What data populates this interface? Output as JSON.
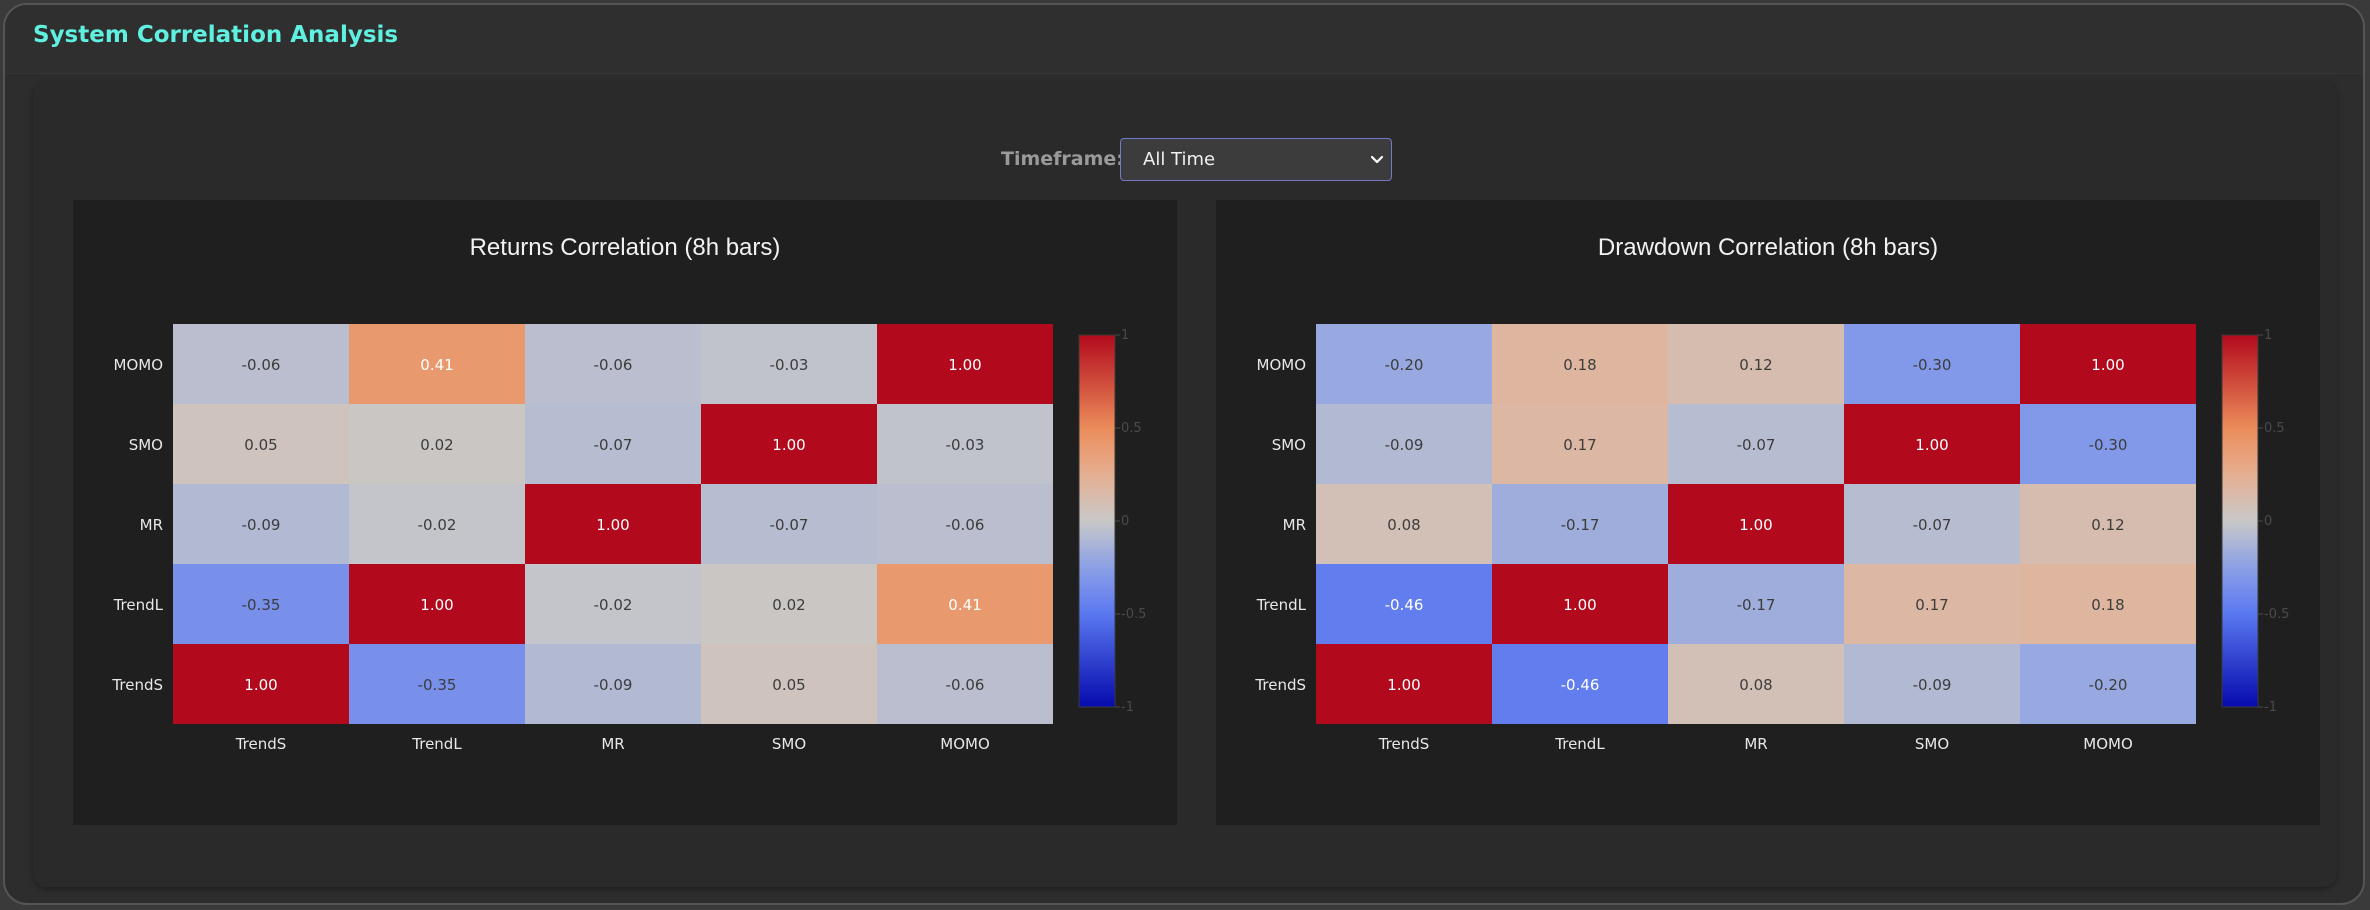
{
  "app": {
    "title": "System Correlation Analysis"
  },
  "controls": {
    "timeframe_label": "Timeframe:",
    "timeframe_value": "All Time"
  },
  "colors": {
    "title_accent": "#5ff0e0",
    "select_border": "#6f79c8"
  },
  "chart_data": [
    {
      "type": "heatmap",
      "title": "Returns Correlation (8h bars)",
      "x_labels": [
        "TrendS",
        "TrendL",
        "MR",
        "SMO",
        "MOMO"
      ],
      "y_labels": [
        "MOMO",
        "SMO",
        "MR",
        "TrendL",
        "TrendS"
      ],
      "values": [
        [
          -0.06,
          0.41,
          -0.06,
          -0.03,
          1.0
        ],
        [
          0.05,
          0.02,
          -0.07,
          1.0,
          -0.03
        ],
        [
          -0.09,
          -0.02,
          1.0,
          -0.07,
          -0.06
        ],
        [
          -0.35,
          1.0,
          -0.02,
          0.02,
          0.41
        ],
        [
          1.0,
          -0.35,
          -0.09,
          0.05,
          -0.06
        ]
      ],
      "labels": [
        [
          "-0.06",
          "0.41",
          "-0.06",
          "-0.03",
          "1.00"
        ],
        [
          "0.05",
          "0.02",
          "-0.07",
          "1.00",
          "-0.03"
        ],
        [
          "-0.09",
          "-0.02",
          "1.00",
          "-0.07",
          "-0.06"
        ],
        [
          "-0.35",
          "1.00",
          "-0.02",
          "0.02",
          "0.41"
        ],
        [
          "1.00",
          "-0.35",
          "-0.09",
          "0.05",
          "-0.06"
        ]
      ],
      "colorbar": {
        "range": [
          -1,
          1
        ],
        "ticks": [
          "1",
          "0.5",
          "0",
          "-0.5",
          "-1"
        ]
      }
    },
    {
      "type": "heatmap",
      "title": "Drawdown Correlation (8h bars)",
      "x_labels": [
        "TrendS",
        "TrendL",
        "MR",
        "SMO",
        "MOMO"
      ],
      "y_labels": [
        "MOMO",
        "SMO",
        "MR",
        "TrendL",
        "TrendS"
      ],
      "values": [
        [
          -0.2,
          0.18,
          0.12,
          -0.3,
          1.0
        ],
        [
          -0.09,
          0.17,
          -0.07,
          1.0,
          -0.3
        ],
        [
          0.08,
          -0.17,
          1.0,
          -0.07,
          0.12
        ],
        [
          -0.46,
          1.0,
          -0.17,
          0.17,
          0.18
        ],
        [
          1.0,
          -0.46,
          0.08,
          -0.09,
          -0.2
        ]
      ],
      "labels": [
        [
          "-0.20",
          "0.18",
          "0.12",
          "-0.30",
          "1.00"
        ],
        [
          "-0.09",
          "0.17",
          "-0.07",
          "1.00",
          "-0.30"
        ],
        [
          "0.08",
          "-0.17",
          "1.00",
          "-0.07",
          "0.12"
        ],
        [
          "-0.46",
          "1.00",
          "-0.17",
          "0.17",
          "0.18"
        ],
        [
          "1.00",
          "-0.46",
          "0.08",
          "-0.09",
          "-0.20"
        ]
      ],
      "colorbar": {
        "range": [
          -1,
          1
        ],
        "ticks": [
          "1",
          "0.5",
          "0",
          "-0.5",
          "-1"
        ]
      }
    }
  ]
}
